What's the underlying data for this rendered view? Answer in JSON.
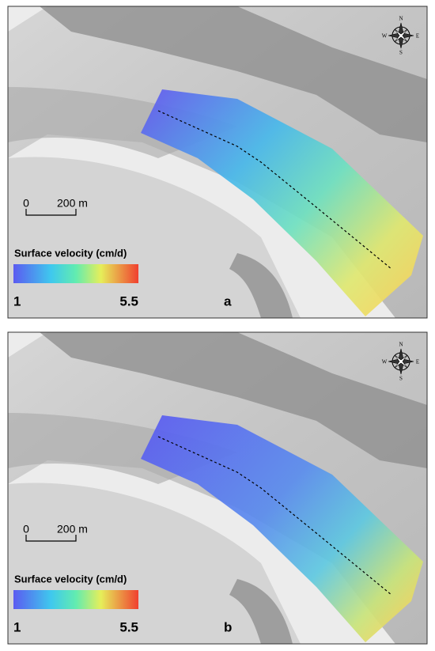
{
  "panels": [
    {
      "label": "a",
      "compass": {
        "n": "N",
        "e": "E",
        "s": "S",
        "w": "W"
      },
      "scale_bar": {
        "start": "0",
        "end": "200 m"
      },
      "legend": {
        "title": "Surface velocity (cm/d)",
        "min": 1,
        "max": 5.5
      }
    },
    {
      "label": "b",
      "compass": {
        "n": "N",
        "e": "E",
        "s": "S",
        "w": "W"
      },
      "scale_bar": {
        "start": "0",
        "end": "200 m"
      },
      "legend": {
        "title": "Surface velocity (cm/d)",
        "min": 1,
        "max": 5.5
      }
    }
  ]
}
